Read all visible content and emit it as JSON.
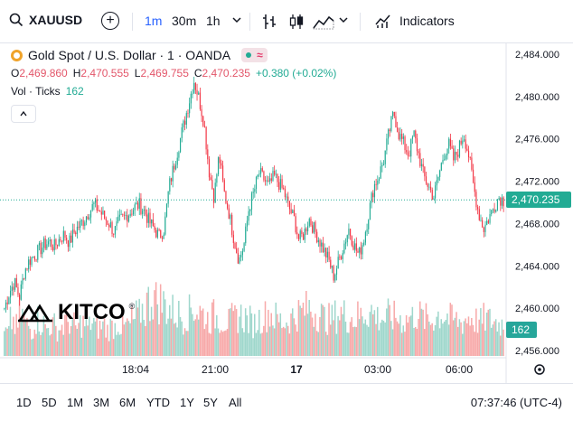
{
  "toolbar": {
    "symbol": "XAUUSD",
    "timeframes": [
      "1m",
      "30m",
      "1h"
    ],
    "active_timeframe": "1m",
    "indicators_label": "Indicators"
  },
  "legend": {
    "title": "Gold Spot / U.S. Dollar · 1 · OANDA",
    "open_label": "O",
    "open": "2,469.860",
    "high_label": "H",
    "high": "2,470.555",
    "low_label": "L",
    "low": "2,469.755",
    "close_label": "C",
    "close": "2,470.235",
    "change": "+0.380 (+0.02%)",
    "status_symbol": "≈",
    "vol_label": "Vol · Ticks",
    "vol_value": "162"
  },
  "price_axis": {
    "ticks": [
      "2,484.000",
      "2,480.000",
      "2,476.000",
      "2,472.000",
      "2,468.000",
      "2,464.000",
      "2,460.000",
      "2,456.000"
    ],
    "current_price": "2,470.235",
    "current_volume": "162"
  },
  "time_axis": {
    "labels": [
      "18:04",
      "21:00",
      "17",
      "03:00",
      "06:00"
    ]
  },
  "watermark": "KITCO",
  "bottombar": {
    "ranges": [
      "1D",
      "5D",
      "1M",
      "3M",
      "6M",
      "YTD",
      "1Y",
      "5Y",
      "All"
    ],
    "clock": "07:37:46 (UTC-4)"
  },
  "colors": {
    "up": "#22ab94",
    "down": "#f23645",
    "accent": "#2962ff",
    "current_price": "#22ab94"
  },
  "chart_data": {
    "type": "line",
    "y_min": 2456.0,
    "y_max": 2484.0,
    "price_path": [
      2460.0,
      2461.5,
      2462.5,
      2461.0,
      2463.5,
      2464.5,
      2465.0,
      2465.5,
      2466.0,
      2466.3,
      2465.8,
      2466.5,
      2467.0,
      2466.2,
      2467.2,
      2467.8,
      2468.4,
      2469.2,
      2469.8,
      2469.2,
      2468.6,
      2468.0,
      2467.2,
      2468.2,
      2468.6,
      2469.0,
      2469.5,
      2469.8,
      2469.2,
      2468.2,
      2467.5,
      2466.8,
      2467.5,
      2471.5,
      2473.5,
      2475.5,
      2477.5,
      2479.5,
      2481.5,
      2479.8,
      2477.5,
      2473.0,
      2470.5,
      2474.5,
      2471.0,
      2469.0,
      2466.5,
      2464.5,
      2466.0,
      2469.5,
      2471.0,
      2472.8,
      2472.2,
      2471.5,
      2472.5,
      2471.8,
      2471.0,
      2469.5,
      2468.5,
      2466.5,
      2467.0,
      2468.5,
      2467.5,
      2466.5,
      2465.5,
      2464.5,
      2463.0,
      2464.5,
      2466.0,
      2467.5,
      2466.0,
      2465.0,
      2466.5,
      2469.0,
      2471.5,
      2472.5,
      2474.0,
      2476.5,
      2478.5,
      2476.5,
      2475.5,
      2474.5,
      2476.5,
      2474.5,
      2472.5,
      2471.5,
      2470.5,
      2472.5,
      2474.5,
      2475.5,
      2474.0,
      2475.0,
      2476.5,
      2474.5,
      2471.5,
      2469.0,
      2467.5,
      2468.5,
      2469.5,
      2470.5,
      2470.2
    ],
    "volume_profile": [
      30,
      45,
      38,
      52,
      40,
      35,
      48,
      42,
      36,
      40,
      34,
      38,
      45,
      40,
      36,
      42,
      38,
      44,
      36,
      40,
      34,
      38,
      42,
      36,
      40,
      46,
      52,
      60,
      70,
      78,
      72,
      68,
      62,
      58,
      54,
      50,
      56,
      62,
      58,
      54,
      48,
      52,
      50,
      46,
      44,
      48,
      52,
      50,
      46,
      42,
      48,
      52,
      56,
      50,
      46,
      44,
      48,
      52,
      56,
      60,
      62,
      58,
      54,
      50,
      48,
      52,
      56,
      54,
      50,
      48,
      52,
      56,
      58,
      54,
      50,
      48,
      52,
      50,
      48,
      46,
      50,
      54,
      52,
      48,
      46,
      50,
      54,
      52,
      48,
      46,
      44,
      48,
      50,
      46,
      44,
      48,
      46,
      44,
      42,
      40
    ]
  }
}
